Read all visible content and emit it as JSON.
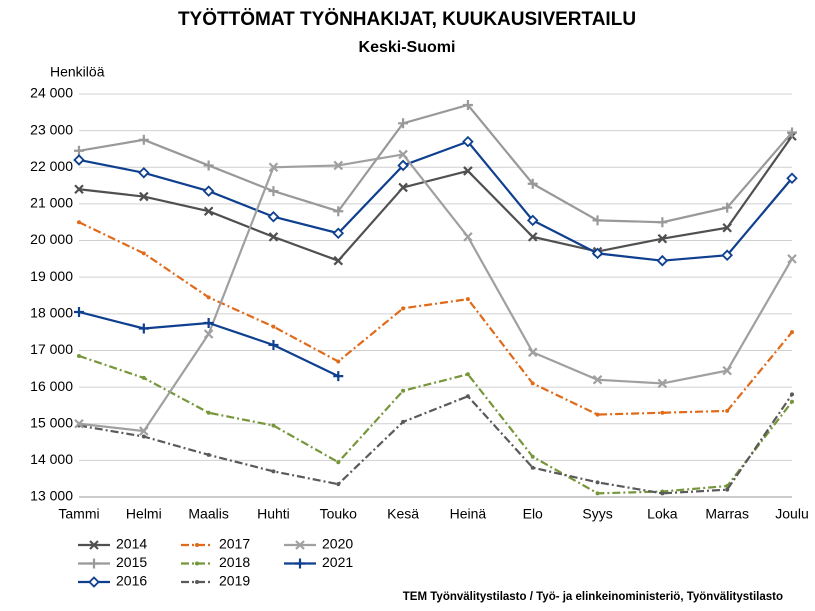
{
  "chart_data": {
    "type": "line",
    "title": "TYÖTTÖMAT TYÖNHAKIJAT, KUUKAUSIVERTAILU",
    "subtitle": "Keski-Suomi",
    "y_label": "Henkilöä",
    "source": "TEM Työnvälitystilasto / Työ- ja elinkeinoministeriö, Työnvälitystilasto",
    "categories": [
      "Tammi",
      "Helmi",
      "Maalis",
      "Huhti",
      "Touko",
      "Kesä",
      "Heinä",
      "Elo",
      "Syys",
      "Loka",
      "Marras",
      "Joulu"
    ],
    "ylim": [
      13000,
      24000
    ],
    "yticks": [
      {
        "value": 13000,
        "label": "13 000"
      },
      {
        "value": 14000,
        "label": "14 000"
      },
      {
        "value": 15000,
        "label": "15 000"
      },
      {
        "value": 16000,
        "label": "16 000"
      },
      {
        "value": 17000,
        "label": "17 000"
      },
      {
        "value": 18000,
        "label": "18 000"
      },
      {
        "value": 19000,
        "label": "19 000"
      },
      {
        "value": 20000,
        "label": "20 000"
      },
      {
        "value": 21000,
        "label": "21 000"
      },
      {
        "value": 22000,
        "label": "22 000"
      },
      {
        "value": 23000,
        "label": "23 000"
      },
      {
        "value": 24000,
        "label": "24 000"
      }
    ],
    "grid": true,
    "legend": "bottom",
    "series": [
      {
        "name": "2014",
        "color": "#505050",
        "marker": "x",
        "dash": "solid",
        "values": [
          21400,
          21200,
          20800,
          20100,
          19450,
          21450,
          21900,
          20100,
          19700,
          20050,
          20350,
          22850
        ]
      },
      {
        "name": "2015",
        "color": "#999999",
        "marker": "plus",
        "dash": "solid",
        "values": [
          22450,
          22750,
          22050,
          21350,
          20800,
          23200,
          23700,
          21550,
          20550,
          20500,
          20900,
          22950
        ]
      },
      {
        "name": "2016",
        "color": "#0f3f8f",
        "marker": "diamond",
        "dash": "solid",
        "values": [
          22200,
          21850,
          21350,
          20650,
          20200,
          22050,
          22700,
          20550,
          19650,
          19450,
          19600,
          21700
        ]
      },
      {
        "name": "2017",
        "color": "#e06a1a",
        "marker": "dot",
        "dash": "dashdot",
        "values": [
          20500,
          19650,
          18450,
          17650,
          16700,
          18150,
          18400,
          16100,
          15250,
          15300,
          15350,
          17500
        ]
      },
      {
        "name": "2018",
        "color": "#76963a",
        "marker": "dot",
        "dash": "dashdot",
        "values": [
          16850,
          16250,
          15300,
          14950,
          13950,
          15900,
          16350,
          14100,
          13100,
          13150,
          13300,
          15600
        ]
      },
      {
        "name": "2019",
        "color": "#5a5a5a",
        "marker": "dot",
        "dash": "dashdot",
        "values": [
          14950,
          14650,
          14150,
          13700,
          13350,
          15050,
          15750,
          13800,
          13400,
          13100,
          13200,
          15800
        ]
      },
      {
        "name": "2020",
        "color": "#a0a0a0",
        "marker": "x",
        "dash": "solid",
        "values": [
          15000,
          14800,
          17450,
          22000,
          22050,
          22350,
          20100,
          16950,
          16200,
          16100,
          16450,
          19500
        ]
      },
      {
        "name": "2021",
        "color": "#0f3f8f",
        "marker": "plus",
        "dash": "solid",
        "values": [
          18050,
          17600,
          17750,
          17150,
          16300,
          null,
          null,
          null,
          null,
          null,
          null,
          null
        ]
      }
    ]
  }
}
